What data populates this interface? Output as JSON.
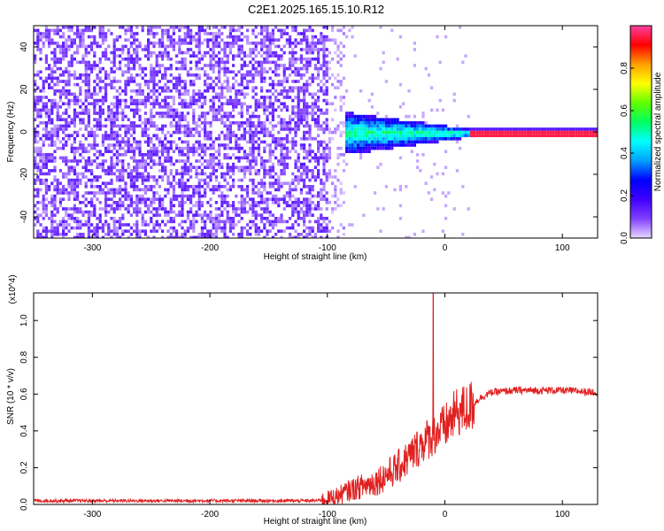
{
  "title": "C2E1.2025.165.15.10.R12",
  "chart_data": [
    {
      "type": "heatmap",
      "title": "C2E1.2025.165.15.10.R12",
      "xlabel": "Height of straight line (km)",
      "ylabel": "Frequency (Hz)",
      "xlim": [
        -350,
        130
      ],
      "ylim": [
        -50,
        50
      ],
      "xticks": [
        "-300",
        "-200",
        "-100",
        "0",
        "100"
      ],
      "yticks": [
        "-40",
        "-20",
        "0",
        "20",
        "40"
      ],
      "colorbar": {
        "label": "Normalized spectral amplitude",
        "range": [
          0,
          1
        ],
        "ticks": [
          "0.0",
          "0.2",
          "0.4",
          "0.6",
          "0.8"
        ],
        "colormap": [
          "#e8d8ff",
          "#8040ff",
          "#4000ff",
          "#0000ff",
          "#00a0ff",
          "#00ffff",
          "#00ff60",
          "#60ff00",
          "#ffff00",
          "#ffa000",
          "#ff0000",
          "#ff40a0"
        ]
      },
      "regions": [
        {
          "name": "noise",
          "x_range": [
            -350,
            -100
          ],
          "freq_range": [
            -50,
            50
          ],
          "amplitude": 0.08
        },
        {
          "name": "transition",
          "x_range": [
            -100,
            20
          ],
          "freq_range": [
            -8,
            8
          ],
          "amplitude_range": [
            0.3,
            0.6
          ]
        },
        {
          "name": "signal",
          "x_range": [
            20,
            130
          ],
          "freq_range": [
            -1,
            1
          ],
          "amplitude": 0.95
        }
      ]
    },
    {
      "type": "line",
      "xlabel": "Height of straight line (km)",
      "ylabel": "SNR (10 * v/v)",
      "y_multiplier": "(x10^4)",
      "xlim": [
        -350,
        130
      ],
      "ylim": [
        0,
        1.15
      ],
      "xticks": [
        "-300",
        "-200",
        "-100",
        "0",
        "100"
      ],
      "yticks": [
        "0.0",
        "0.2",
        "0.4",
        "0.6",
        "0.8",
        "1.0"
      ],
      "color": "#e02020",
      "x": [
        -350,
        -300,
        -250,
        -200,
        -150,
        -110,
        -100,
        -90,
        -80,
        -70,
        -60,
        -50,
        -40,
        -30,
        -20,
        -10,
        0,
        10,
        20,
        30,
        40,
        60,
        80,
        100,
        130
      ],
      "y": [
        0.02,
        0.02,
        0.02,
        0.02,
        0.02,
        0.02,
        0.03,
        0.05,
        0.08,
        0.1,
        0.12,
        0.16,
        0.2,
        0.26,
        0.33,
        0.38,
        0.42,
        0.5,
        0.52,
        0.58,
        0.61,
        0.62,
        0.62,
        0.62,
        0.61
      ],
      "spike": {
        "x": -10,
        "y": 1.15
      }
    }
  ]
}
